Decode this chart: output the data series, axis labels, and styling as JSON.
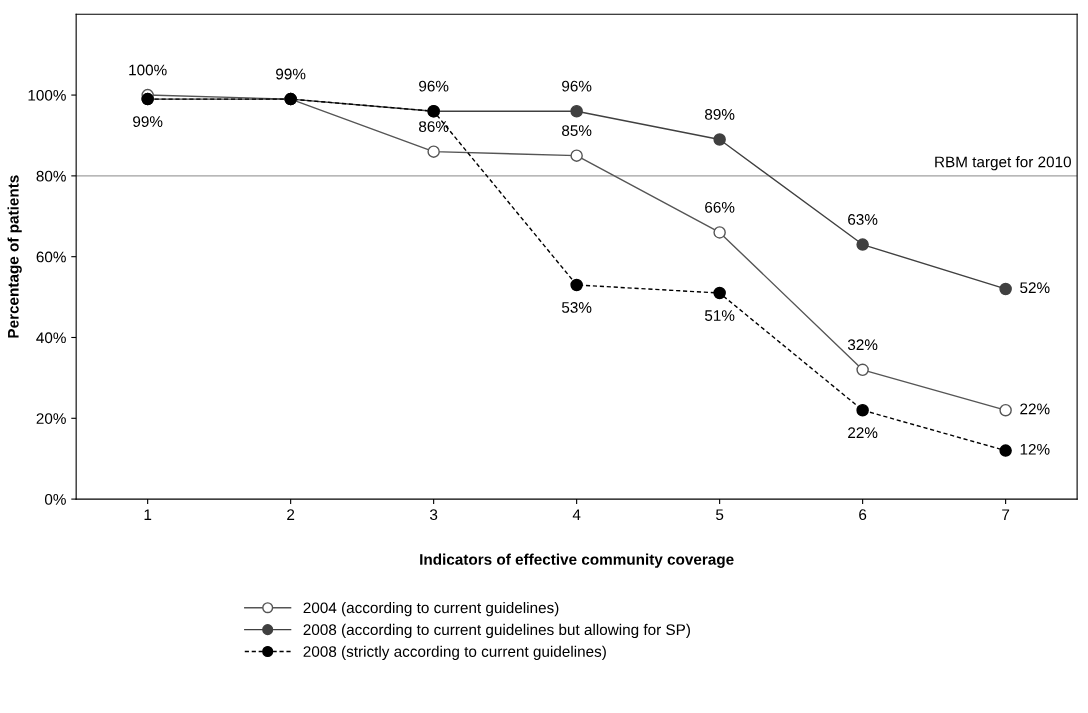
{
  "chart_data": {
    "type": "line",
    "xlabel": "Indicators of effective community coverage",
    "ylabel": "Percentage of patients",
    "categories": [
      "1",
      "2",
      "3",
      "4",
      "5",
      "6",
      "7"
    ],
    "series": [
      {
        "name": "2004 (according to current guidelines)",
        "color": "#555555",
        "line_style": "solid",
        "values": [
          100,
          99,
          86,
          85,
          66,
          32,
          22
        ],
        "value_labels": [
          "100%",
          "99%",
          "86%",
          "85%",
          "66%",
          "32%",
          "22%"
        ]
      },
      {
        "name": "2008 (according to current guidelines but allowing for SP)",
        "color": "#404040",
        "line_style": "solid",
        "values": [
          99,
          99,
          96,
          96,
          89,
          63,
          52
        ],
        "value_labels": [
          null,
          null,
          "96%",
          "96%",
          "89%",
          "63%",
          "52%"
        ]
      },
      {
        "name": "2008 (strictly according to current guidelines)",
        "color": "#000000",
        "line_style": "dashed",
        "values": [
          99,
          99,
          96,
          53,
          51,
          22,
          12
        ],
        "value_labels": [
          "99%",
          null,
          null,
          "53%",
          "51%",
          "22%",
          "12%"
        ]
      }
    ],
    "ylim": [
      0,
      120
    ],
    "yticks": [
      {
        "value": 0,
        "label": "0%"
      },
      {
        "value": 20,
        "label": "20%"
      },
      {
        "value": 40,
        "label": "40%"
      },
      {
        "value": 60,
        "label": "60%"
      },
      {
        "value": 80,
        "label": "80%"
      },
      {
        "value": 100,
        "label": "100%"
      }
    ],
    "ref_lines": [
      {
        "axis": "y",
        "value": 80,
        "label": "RBM target for 2010",
        "color": "#a0a0a0"
      }
    ],
    "marker": "circle",
    "grid": false,
    "legend": "bottom"
  }
}
